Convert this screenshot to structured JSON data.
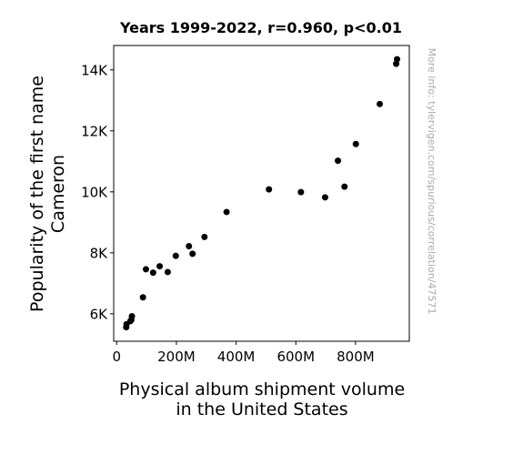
{
  "chart_data": {
    "type": "scatter",
    "title": "Years 1999-2022, r=0.960, p<0.01",
    "xlabel_lines": [
      "Physical album shipment volume",
      "in the United States"
    ],
    "ylabel_lines": [
      "Popularity of the first name",
      "Cameron"
    ],
    "xlim": [
      -10000000,
      980000000
    ],
    "ylim": [
      5100,
      14800
    ],
    "x_ticks": [
      {
        "value": 0,
        "label": "0"
      },
      {
        "value": 200000000,
        "label": "200M"
      },
      {
        "value": 400000000,
        "label": "400M"
      },
      {
        "value": 600000000,
        "label": "600M"
      },
      {
        "value": 800000000,
        "label": "800M"
      }
    ],
    "y_ticks": [
      {
        "value": 6000,
        "label": "6K"
      },
      {
        "value": 8000,
        "label": "8K"
      },
      {
        "value": 10000,
        "label": "10K"
      },
      {
        "value": 12000,
        "label": "12K"
      },
      {
        "value": 14000,
        "label": "14K"
      }
    ],
    "point_color": "#000000",
    "grid": false,
    "points": [
      {
        "x": 939000000,
        "y": 14350
      },
      {
        "x": 936000000,
        "y": 14200
      },
      {
        "x": 881000000,
        "y": 12880
      },
      {
        "x": 801000000,
        "y": 11570
      },
      {
        "x": 741000000,
        "y": 11020
      },
      {
        "x": 763000000,
        "y": 10170
      },
      {
        "x": 698000000,
        "y": 9820
      },
      {
        "x": 617000000,
        "y": 9990
      },
      {
        "x": 510000000,
        "y": 10080
      },
      {
        "x": 368000000,
        "y": 9340
      },
      {
        "x": 294000000,
        "y": 8520
      },
      {
        "x": 242000000,
        "y": 8220
      },
      {
        "x": 254000000,
        "y": 7970
      },
      {
        "x": 198000000,
        "y": 7900
      },
      {
        "x": 171000000,
        "y": 7370
      },
      {
        "x": 144000000,
        "y": 7560
      },
      {
        "x": 122000000,
        "y": 7350
      },
      {
        "x": 98000000,
        "y": 7460
      },
      {
        "x": 88000000,
        "y": 6540
      },
      {
        "x": 51000000,
        "y": 5920
      },
      {
        "x": 49000000,
        "y": 5800
      },
      {
        "x": 46000000,
        "y": 5760
      },
      {
        "x": 33000000,
        "y": 5660
      },
      {
        "x": 32000000,
        "y": 5560
      }
    ]
  },
  "watermark": "More info: tylervigen.com/spurious/correlation/47571"
}
